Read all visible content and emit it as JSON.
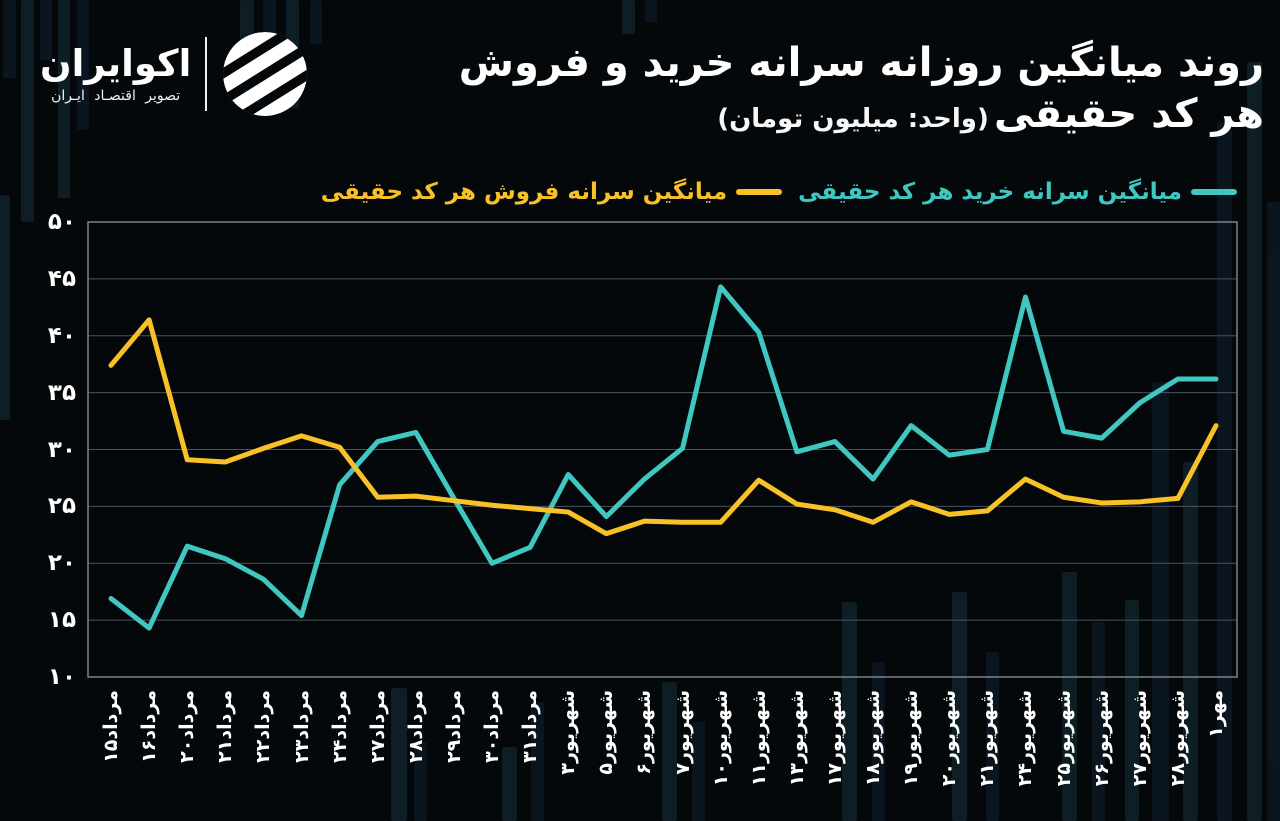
{
  "brand": {
    "name": "اکوایران",
    "tagline": "تصویر اقتصـاد ایـران"
  },
  "title": {
    "line1": "روند میانگین روزانه سرانه خرید و فروش",
    "line2": "هر کد حقیقی",
    "unit": "(واحد: میلیون تومان)"
  },
  "legend": [
    {
      "label": "میانگین سرانه خرید هر کد حقیقی",
      "color": "#41c7c1"
    },
    {
      "label": "میانگین سرانه فروش هر کد حقیقی",
      "color": "#f9c128"
    }
  ],
  "colors": {
    "background": "#05080a",
    "buy_line": "#41c7c1",
    "sell_line": "#f9c128",
    "grid": "#47545a",
    "plot_border": "#858c8e",
    "text": "#ffffff"
  },
  "chart_data": {
    "type": "line",
    "title": "روند میانگین روزانه سرانه خرید و فروش هر کد حقیقی",
    "unit_label": "(واحد: میلیون تومان)",
    "grid": "horizontal",
    "legend_position": "top-right",
    "ylim": [
      10,
      50
    ],
    "yticks": [
      10,
      15,
      20,
      25,
      30,
      35,
      40,
      45,
      50
    ],
    "ytick_labels": [
      "۱۰",
      "۱۵",
      "۲۰",
      "۲۵",
      "۳۰",
      "۳۵",
      "۴۰",
      "۴۵",
      "۵۰"
    ],
    "categories": [
      "مرداد۱۵",
      "مرداد۱۶",
      "مرداد۲۰",
      "مرداد۲۱",
      "مرداد۲۲",
      "مرداد۲۳",
      "مرداد۲۴",
      "مرداد۲۷",
      "مرداد۲۸",
      "مرداد۲۹",
      "مرداد۳۰",
      "مرداد۳۱",
      "شهریور۳",
      "شهریور۵",
      "شهریور۶",
      "شهریور۷",
      "شهریور۱۰",
      "شهریور۱۱",
      "شهریور۱۳",
      "شهریور۱۷",
      "شهریور۱۸",
      "شهریور۱۹",
      "شهریور۲۰",
      "شهریور۲۱",
      "شهریور۲۴",
      "شهریور۲۵",
      "شهریور۲۶",
      "شهریور۲۷",
      "شهریور۲۸",
      "مهر۱"
    ],
    "series": [
      {
        "name": "میانگین سرانه خرید هر کد حقیقی",
        "color": "#41c7c1",
        "values": [
          16.9,
          14.3,
          21.5,
          20.4,
          18.6,
          15.4,
          26.9,
          30.7,
          31.5,
          25.7,
          20.0,
          21.4,
          27.8,
          24.1,
          27.4,
          30.1,
          44.3,
          40.3,
          29.8,
          30.7,
          27.4,
          32.1,
          29.5,
          30.0,
          43.4,
          31.6,
          31.0,
          34.1,
          36.2,
          36.2
        ]
      },
      {
        "name": "میانگین سرانه فروش هر کد حقیقی",
        "color": "#f9c128",
        "values": [
          37.4,
          41.4,
          29.1,
          28.9,
          30.1,
          31.2,
          30.2,
          25.8,
          25.9,
          25.5,
          25.1,
          24.8,
          24.5,
          22.6,
          23.7,
          23.6,
          23.6,
          27.3,
          25.2,
          24.7,
          23.6,
          25.4,
          24.3,
          24.6,
          27.4,
          25.8,
          25.3,
          25.4,
          25.7,
          32.1
        ]
      }
    ]
  }
}
